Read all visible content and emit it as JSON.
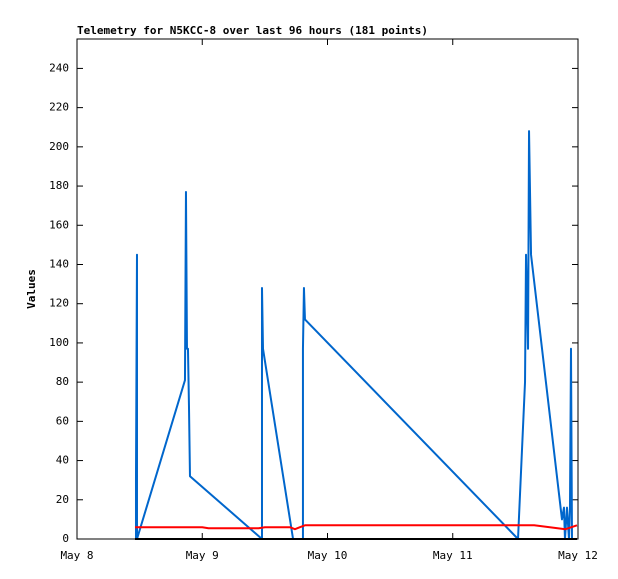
{
  "chart_data": {
    "type": "line",
    "title": "Telemetry for N5KCC-8 over last 96 hours (181 points)",
    "y_label": "Values",
    "xlim": [
      0,
      4
    ],
    "xticks": [
      {
        "value": 0,
        "label": "May 8"
      },
      {
        "value": 1,
        "label": "May 9"
      },
      {
        "value": 2,
        "label": "May 10"
      },
      {
        "value": 3,
        "label": "May 11"
      },
      {
        "value": 4,
        "label": "May 12"
      }
    ],
    "ylim": [
      0,
      255
    ],
    "yticks": [
      0,
      20,
      40,
      60,
      80,
      100,
      120,
      140,
      160,
      180,
      200,
      220,
      240
    ],
    "grid": false,
    "series": [
      {
        "color": "#0066cc",
        "x": [
          0.471,
          0.471,
          0.479,
          0.479,
          0.862,
          0.87,
          0.878,
          0.886,
          0.894,
          0.902,
          1.477,
          1.477,
          1.485,
          1.725,
          1.804,
          1.804,
          1.812,
          1.82,
          3.521,
          3.577,
          3.585,
          3.601,
          3.609,
          3.625,
          3.872,
          3.888,
          3.896,
          3.912,
          3.928,
          3.936,
          3.944,
          3.952
        ],
        "values": [
          0,
          32,
          145,
          0,
          81,
          177,
          97,
          97,
          68,
          32,
          0,
          128,
          97,
          0,
          0,
          97,
          128,
          112,
          0,
          80,
          145,
          97,
          208,
          145,
          10,
          16,
          0,
          16,
          0,
          16,
          97,
          0
        ]
      },
      {
        "color": "#ff0000",
        "x": [
          0.463,
          1.0,
          1.05,
          1.45,
          1.5,
          1.7,
          1.74,
          1.78,
          1.82,
          3.5,
          3.65,
          3.9,
          3.992
        ],
        "values": [
          6,
          6,
          5.5,
          5.5,
          6,
          6,
          5,
          6,
          7,
          7,
          7,
          5,
          7
        ]
      },
      {
        "color": "#000000",
        "x": [
          0.463,
          3.992
        ],
        "values": [
          0,
          0
        ]
      }
    ]
  }
}
